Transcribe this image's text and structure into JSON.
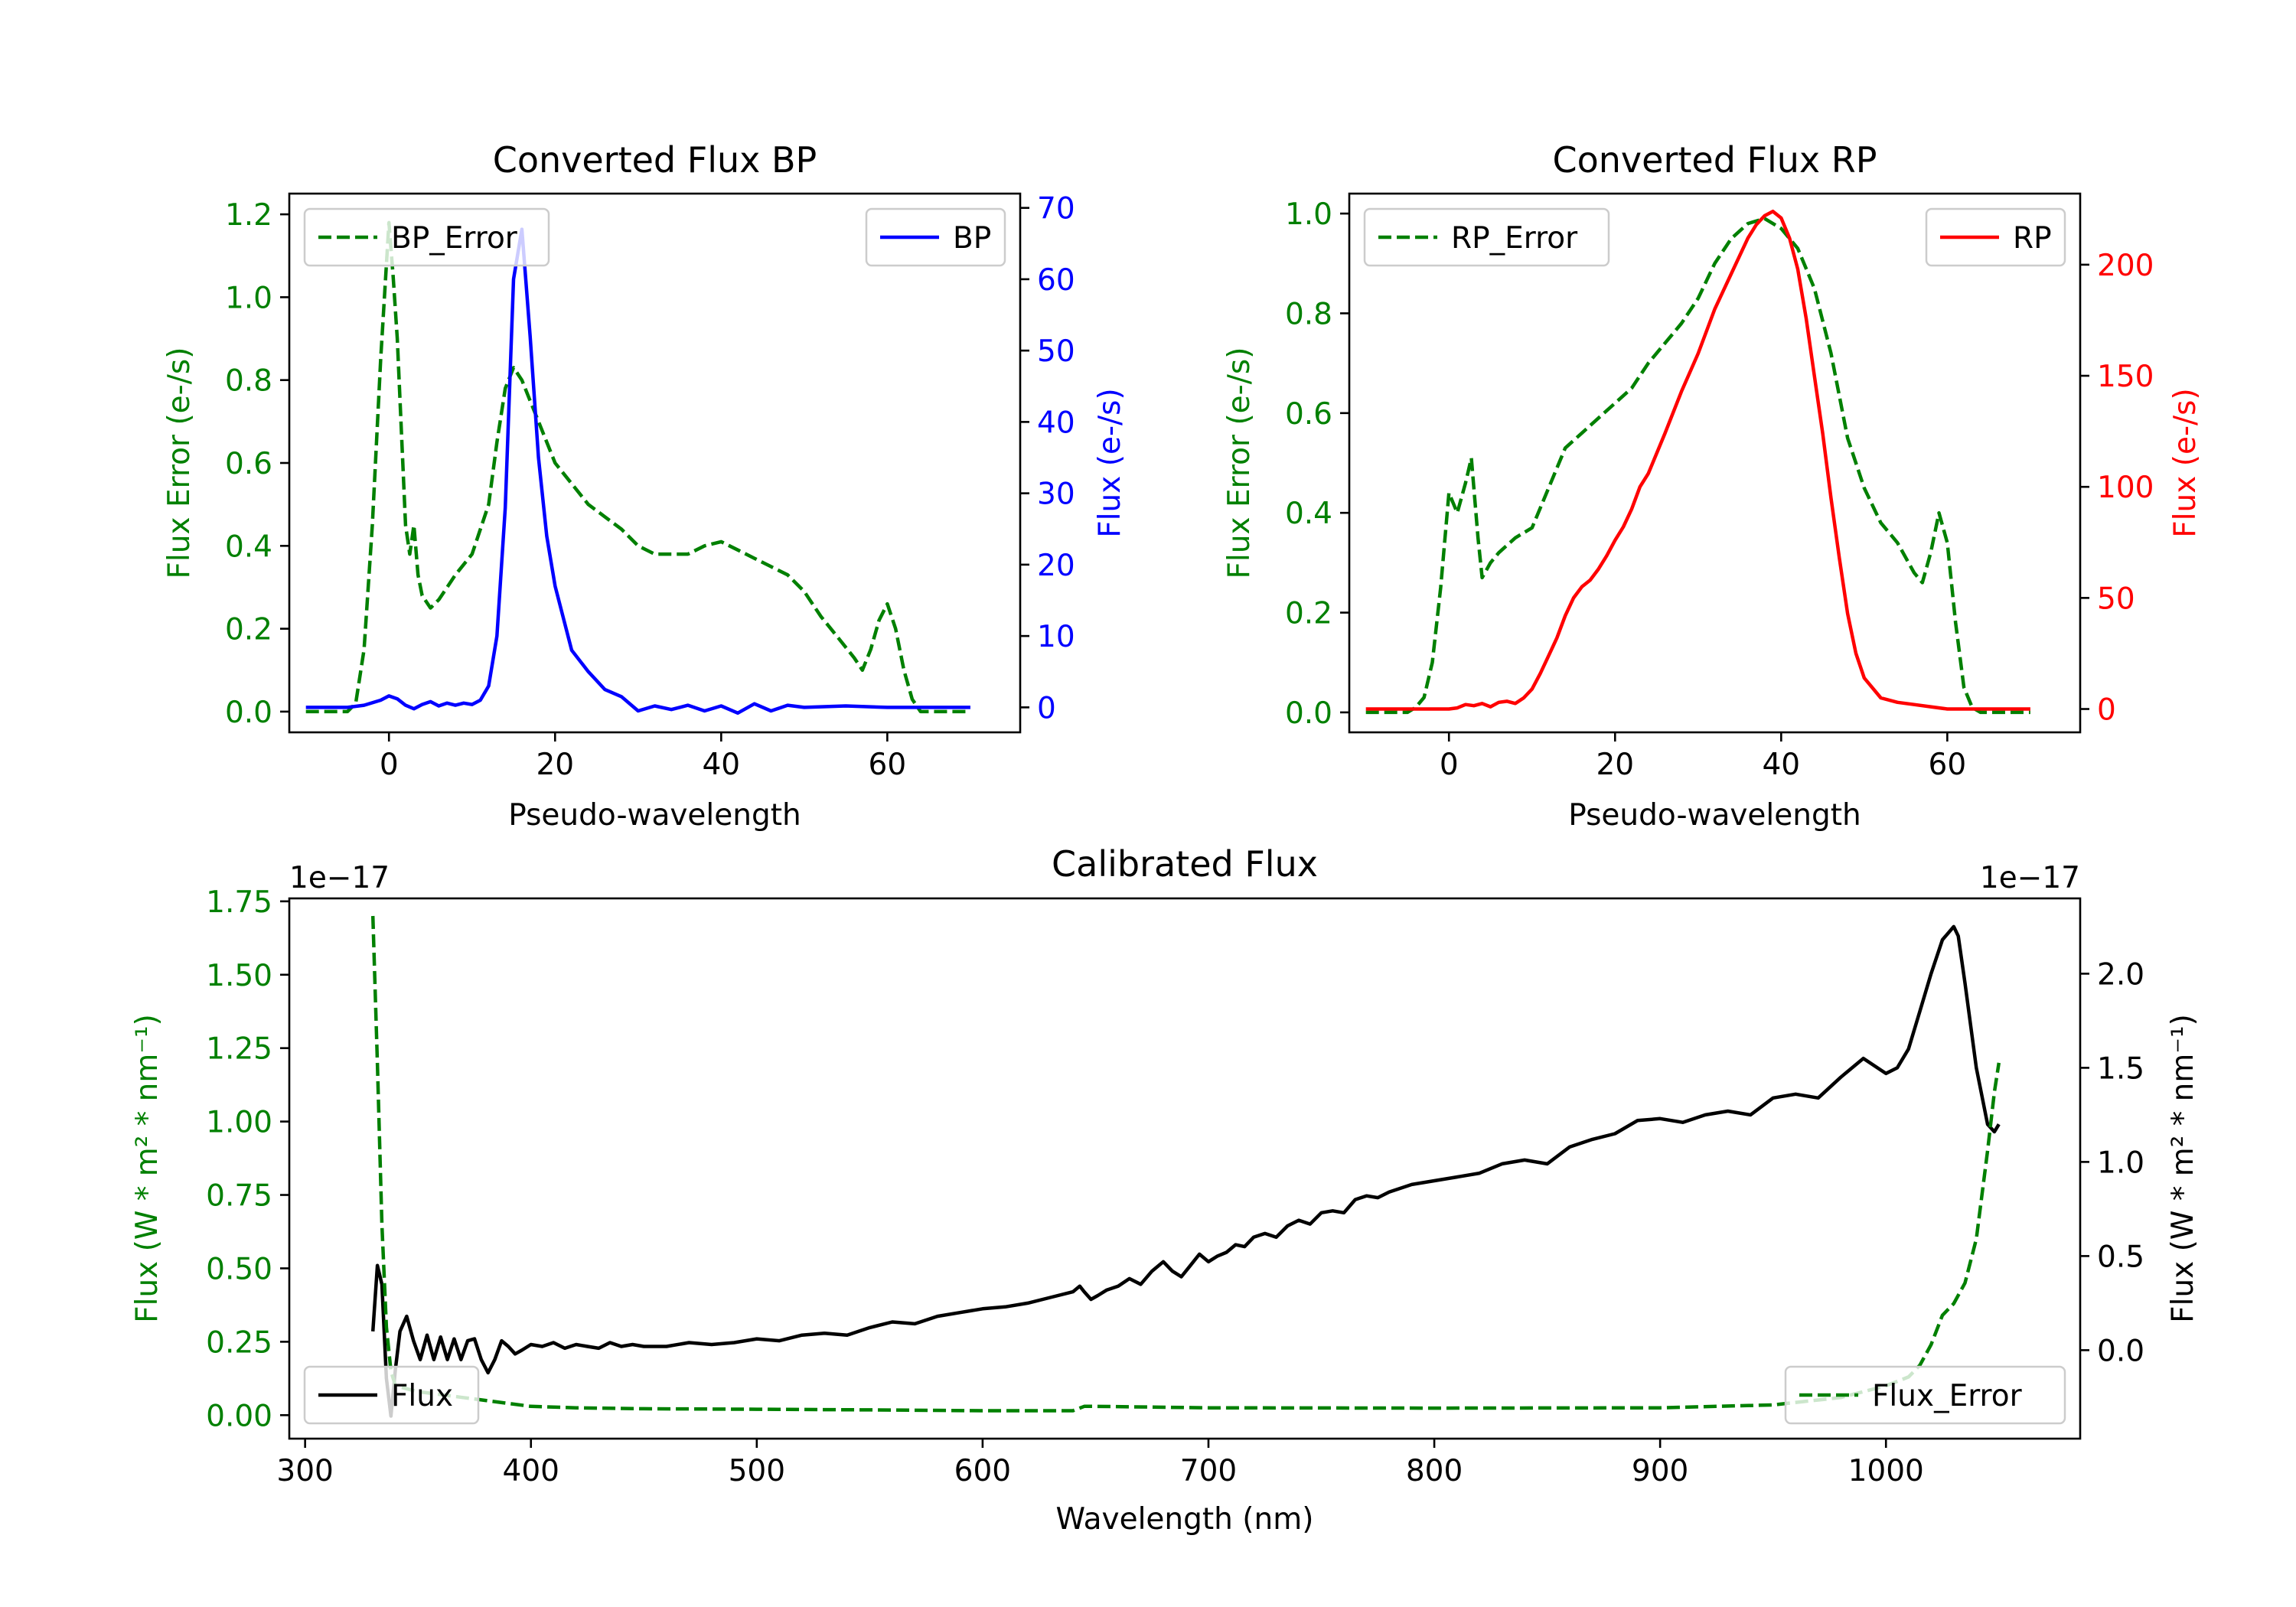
{
  "chart_data": [
    {
      "id": "bp",
      "type": "line",
      "title": "Converted Flux BP",
      "xlabel": "Pseudo-wavelength",
      "xlim": [
        -12,
        76
      ],
      "xticks": [
        0,
        20,
        40,
        60
      ],
      "y_left": {
        "label": "Flux Error (e-/s)",
        "color": "#008000",
        "lim": [
          -0.05,
          1.25
        ],
        "ticks": [
          0.0,
          0.2,
          0.4,
          0.6,
          0.8,
          1.0,
          1.2
        ],
        "tick_labels": [
          "0.0",
          "0.2",
          "0.4",
          "0.6",
          "0.8",
          "1.0",
          "1.2"
        ]
      },
      "y_right": {
        "label": "Flux (e-/s)",
        "color": "#0000ff",
        "lim": [
          -3.5,
          72
        ],
        "ticks": [
          0,
          10,
          20,
          30,
          40,
          50,
          60,
          70
        ],
        "tick_labels": [
          "0",
          "10",
          "20",
          "30",
          "40",
          "50",
          "60",
          "70"
        ]
      },
      "series": [
        {
          "name": "BP_Error",
          "axis": "left",
          "color": "#008000",
          "style": "dashed",
          "x": [
            -10,
            -5,
            -4,
            -3,
            -2,
            -1,
            0,
            0.5,
            1,
            2,
            2.5,
            3,
            3.5,
            4,
            5,
            6,
            7,
            8,
            10,
            12,
            13,
            14,
            15,
            16,
            17,
            18,
            20,
            22,
            24,
            26,
            28,
            30,
            32,
            34,
            36,
            38,
            40,
            42,
            44,
            46,
            48,
            50,
            52,
            54,
            56,
            57,
            58,
            59,
            60,
            61,
            62,
            63,
            64,
            66,
            68,
            70
          ],
          "y": [
            0,
            0,
            0.02,
            0.15,
            0.45,
            0.85,
            1.18,
            1.05,
            0.9,
            0.45,
            0.38,
            0.45,
            0.33,
            0.28,
            0.25,
            0.27,
            0.3,
            0.33,
            0.38,
            0.5,
            0.65,
            0.78,
            0.83,
            0.8,
            0.75,
            0.7,
            0.6,
            0.55,
            0.5,
            0.47,
            0.44,
            0.4,
            0.38,
            0.38,
            0.38,
            0.4,
            0.41,
            0.39,
            0.37,
            0.35,
            0.33,
            0.29,
            0.23,
            0.18,
            0.13,
            0.1,
            0.15,
            0.22,
            0.26,
            0.2,
            0.1,
            0.03,
            0,
            0,
            0,
            0
          ]
        },
        {
          "name": "BP",
          "axis": "right",
          "color": "#0000ff",
          "style": "solid",
          "x": [
            -10,
            -5,
            -3,
            -1,
            0,
            1,
            2,
            3,
            4,
            5,
            6,
            7,
            8,
            9,
            10,
            11,
            12,
            13,
            14,
            15,
            16,
            17,
            18,
            19,
            20,
            22,
            24,
            26,
            28,
            30,
            32,
            34,
            36,
            38,
            40,
            42,
            44,
            46,
            48,
            50,
            55,
            60,
            65,
            70
          ],
          "y": [
            0,
            0,
            0.3,
            1,
            1.6,
            1.2,
            0.3,
            -0.2,
            0.4,
            0.8,
            0.2,
            0.6,
            0.3,
            0.6,
            0.4,
            1,
            3,
            10,
            28,
            60,
            67,
            52,
            35,
            24,
            17,
            8,
            5,
            2.5,
            1.5,
            -0.5,
            0.2,
            -0.3,
            0.3,
            -0.5,
            0.2,
            -0.8,
            0.5,
            -0.5,
            0.3,
            0,
            0.2,
            0,
            0,
            0
          ]
        }
      ],
      "legend_left": {
        "label": "BP_Error",
        "position": "upper left"
      },
      "legend_right": {
        "label": "BP",
        "position": "upper right"
      }
    },
    {
      "id": "rp",
      "type": "line",
      "title": "Converted Flux RP",
      "xlabel": "Pseudo-wavelength",
      "xlim": [
        -12,
        76
      ],
      "xticks": [
        0,
        20,
        40,
        60
      ],
      "y_left": {
        "label": "Flux Error (e-/s)",
        "color": "#008000",
        "lim": [
          -0.04,
          1.04
        ],
        "ticks": [
          0.0,
          0.2,
          0.4,
          0.6,
          0.8,
          1.0
        ],
        "tick_labels": [
          "0.0",
          "0.2",
          "0.4",
          "0.6",
          "0.8",
          "1.0"
        ]
      },
      "y_right": {
        "label": "Flux (e-/s)",
        "color": "#ff0000",
        "lim": [
          -10.5,
          232
        ],
        "ticks": [
          0,
          50,
          100,
          150,
          200
        ],
        "tick_labels": [
          "0",
          "50",
          "100",
          "150",
          "200"
        ]
      },
      "series": [
        {
          "name": "RP_Error",
          "axis": "right_none",
          "color": "#008000",
          "style": "dashed",
          "x": [
            -10,
            -5,
            -4,
            -3,
            -2,
            -1,
            0,
            1,
            2,
            2.7,
            3.5,
            4,
            5,
            6,
            8,
            10,
            12,
            14,
            16,
            18,
            20,
            22,
            24,
            26,
            28,
            30,
            32,
            34,
            36,
            38,
            40,
            42,
            44,
            46,
            48,
            50,
            52,
            54,
            56,
            57,
            58,
            59,
            60,
            61,
            62,
            63,
            64,
            66,
            70
          ],
          "y": [
            0,
            0,
            0.01,
            0.03,
            0.1,
            0.25,
            0.44,
            0.4,
            0.46,
            0.51,
            0.35,
            0.27,
            0.3,
            0.32,
            0.35,
            0.37,
            0.45,
            0.53,
            0.56,
            0.59,
            0.62,
            0.65,
            0.7,
            0.74,
            0.78,
            0.83,
            0.9,
            0.95,
            0.98,
            0.99,
            0.97,
            0.93,
            0.85,
            0.72,
            0.55,
            0.45,
            0.38,
            0.34,
            0.28,
            0.26,
            0.32,
            0.4,
            0.34,
            0.18,
            0.05,
            0.01,
            0,
            0,
            0
          ]
        },
        {
          "name": "RP",
          "axis": "right",
          "color": "#ff0000",
          "style": "solid",
          "x": [
            -10,
            -5,
            0,
            1,
            2,
            3,
            4,
            5,
            6,
            7,
            8,
            9,
            10,
            11,
            12,
            13,
            14,
            15,
            16,
            17,
            18,
            19,
            20,
            21,
            22,
            23,
            24,
            26,
            28,
            30,
            32,
            34,
            36,
            37,
            38,
            39,
            40,
            41,
            42,
            43,
            44,
            45,
            46,
            47,
            48,
            49,
            50,
            52,
            54,
            56,
            58,
            60,
            62,
            65,
            70
          ],
          "y": [
            0,
            0,
            0,
            0.5,
            2,
            1.5,
            2.5,
            1,
            3,
            3.5,
            2.5,
            5,
            9,
            16,
            24,
            32,
            42,
            50,
            55,
            58,
            63,
            69,
            76,
            82,
            90,
            100,
            106,
            124,
            143,
            160,
            180,
            196,
            212,
            218,
            222,
            224,
            221,
            212,
            198,
            176,
            150,
            124,
            95,
            68,
            43,
            25,
            14,
            5,
            3,
            2,
            1,
            0,
            0,
            0,
            0
          ]
        }
      ],
      "legend_left": {
        "label": "RP_Error",
        "position": "upper left"
      },
      "legend_right": {
        "label": "RP",
        "position": "upper right"
      }
    },
    {
      "id": "cal",
      "type": "line",
      "title": "Calibrated Flux",
      "xlabel": "Wavelength (nm)",
      "xlim": [
        293,
        1086
      ],
      "xticks": [
        300,
        400,
        500,
        600,
        700,
        800,
        900,
        1000
      ],
      "y_left": {
        "label": "Flux (W * m² * nm⁻¹)",
        "color": "#008000",
        "offset": "1e−17",
        "lim": [
          -0.08,
          1.76
        ],
        "ticks": [
          0.0,
          0.25,
          0.5,
          0.75,
          1.0,
          1.25,
          1.5,
          1.75
        ],
        "tick_labels": [
          "0.00",
          "0.25",
          "0.50",
          "0.75",
          "1.00",
          "1.25",
          "1.50",
          "1.75"
        ]
      },
      "y_right": {
        "label": "Flux (W * m² * nm⁻¹)",
        "color": "#000000",
        "offset": "1e−17",
        "lim": [
          -0.47,
          2.4
        ],
        "ticks": [
          0.0,
          0.5,
          1.0,
          1.5,
          2.0
        ],
        "tick_labels": [
          "0.0",
          "0.5",
          "1.0",
          "1.5",
          "2.0"
        ]
      },
      "series": [
        {
          "name": "Flux",
          "axis": "right",
          "color": "#000000",
          "style": "solid",
          "x": [
            330,
            332,
            334,
            336,
            338,
            340,
            342,
            345,
            348,
            351,
            354,
            357,
            360,
            363,
            366,
            369,
            372,
            375,
            378,
            381,
            384,
            387,
            390,
            393,
            396,
            400,
            405,
            410,
            415,
            420,
            425,
            430,
            435,
            440,
            445,
            450,
            460,
            470,
            480,
            490,
            500,
            510,
            520,
            530,
            540,
            550,
            560,
            570,
            580,
            590,
            600,
            610,
            620,
            630,
            640,
            643,
            645,
            648,
            651,
            655,
            660,
            665,
            670,
            675,
            680,
            684,
            688,
            692,
            696,
            700,
            704,
            708,
            712,
            716,
            720,
            725,
            730,
            735,
            740,
            745,
            750,
            755,
            760,
            765,
            770,
            775,
            780,
            790,
            800,
            810,
            820,
            830,
            840,
            850,
            860,
            870,
            880,
            890,
            900,
            910,
            920,
            930,
            940,
            950,
            960,
            970,
            980,
            990,
            1000,
            1005,
            1010,
            1015,
            1020,
            1025,
            1030,
            1032,
            1035,
            1040,
            1045,
            1048,
            1050
          ],
          "y": [
            0.1,
            0.45,
            0.35,
            -0.15,
            -0.35,
            -0.1,
            0.1,
            0.18,
            0.05,
            -0.05,
            0.08,
            -0.05,
            0.07,
            -0.05,
            0.06,
            -0.05,
            0.05,
            0.06,
            -0.05,
            -0.12,
            -0.05,
            0.05,
            0.02,
            -0.02,
            0,
            0.03,
            0.02,
            0.04,
            0.01,
            0.03,
            0.02,
            0.01,
            0.04,
            0.02,
            0.03,
            0.02,
            0.02,
            0.04,
            0.03,
            0.04,
            0.06,
            0.05,
            0.08,
            0.09,
            0.08,
            0.12,
            0.15,
            0.14,
            0.18,
            0.2,
            0.22,
            0.23,
            0.25,
            0.28,
            0.31,
            0.34,
            0.31,
            0.27,
            0.29,
            0.32,
            0.34,
            0.38,
            0.35,
            0.42,
            0.47,
            0.42,
            0.39,
            0.45,
            0.51,
            0.47,
            0.5,
            0.52,
            0.56,
            0.55,
            0.6,
            0.62,
            0.6,
            0.66,
            0.69,
            0.67,
            0.73,
            0.74,
            0.73,
            0.8,
            0.82,
            0.81,
            0.84,
            0.88,
            0.9,
            0.92,
            0.94,
            0.99,
            1.01,
            0.99,
            1.08,
            1.12,
            1.15,
            1.22,
            1.23,
            1.21,
            1.25,
            1.27,
            1.25,
            1.34,
            1.36,
            1.34,
            1.45,
            1.55,
            1.47,
            1.5,
            1.6,
            1.8,
            2.0,
            2.18,
            2.25,
            2.2,
            1.95,
            1.5,
            1.2,
            1.16,
            1.2
          ]
        },
        {
          "name": "Flux_Error",
          "axis": "left",
          "color": "#008000",
          "style": "dashed",
          "x": [
            330,
            332,
            334,
            336,
            338,
            340,
            345,
            350,
            360,
            370,
            380,
            390,
            400,
            420,
            450,
            500,
            550,
            600,
            640,
            645,
            650,
            700,
            800,
            900,
            950,
            980,
            1000,
            1010,
            1015,
            1020,
            1025,
            1030,
            1035,
            1040,
            1045,
            1048,
            1050
          ],
          "y": [
            1.7,
            1.2,
            0.65,
            0.3,
            0.15,
            0.1,
            0.09,
            0.08,
            0.07,
            0.06,
            0.05,
            0.04,
            0.03,
            0.025,
            0.022,
            0.02,
            0.018,
            0.015,
            0.015,
            0.03,
            0.03,
            0.025,
            0.024,
            0.025,
            0.035,
            0.06,
            0.1,
            0.13,
            0.17,
            0.24,
            0.34,
            0.38,
            0.45,
            0.6,
            0.9,
            1.1,
            1.2
          ]
        }
      ],
      "legend_left": {
        "label": "Flux",
        "position": "lower left"
      },
      "legend_right": {
        "label": "Flux_Error",
        "position": "lower right"
      }
    }
  ]
}
